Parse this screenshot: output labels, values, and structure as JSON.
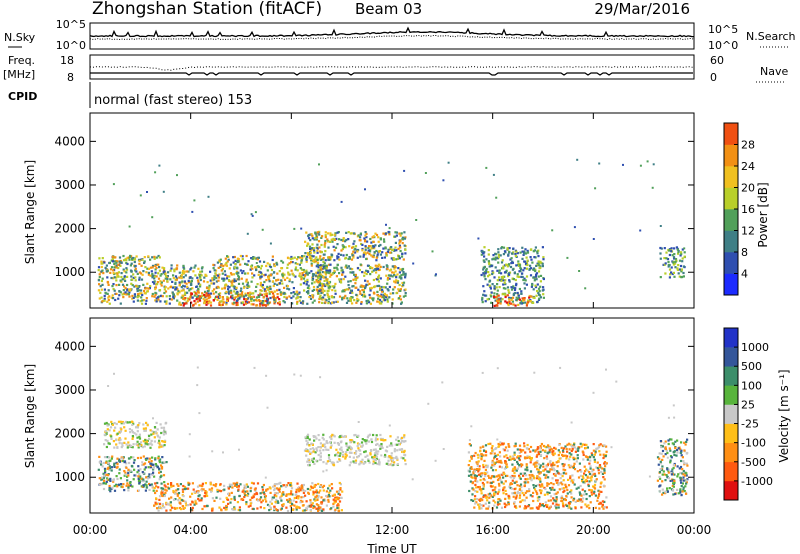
{
  "header": {
    "station": "Zhongshan Station (fitACF)",
    "beam": "Beam 03",
    "date": "29/Mar/2016"
  },
  "noise_panel": {
    "left_label": "N.Sky",
    "left_ticks": [
      "10^5",
      "10^0"
    ],
    "right_ticks": [
      "10^5",
      "10^0"
    ],
    "right_label": "N.Search"
  },
  "freq_panel": {
    "left_label_1": "Freq.",
    "left_label_2": "[MHz]",
    "left_ticks": [
      "18",
      "8"
    ],
    "right_ticks": [
      "60",
      "0"
    ],
    "right_label": "Nave"
  },
  "cpid_panel": {
    "label": "CPID",
    "text": "normal (fast stereo) 153"
  },
  "colors": {
    "power_scale": [
      "#1c2bff",
      "#2f4fb0",
      "#3f7f86",
      "#51a05a",
      "#b9cf2a",
      "#f0c020",
      "#f29014",
      "#f05012",
      "#e01010"
    ],
    "velocity_scale": [
      "#e01010",
      "#ff5a10",
      "#ff8f14",
      "#ffbf18",
      "#c8c8c8",
      "#58b43c",
      "#3c8e6a",
      "#34569a",
      "#2233c8"
    ]
  },
  "chart_data": [
    {
      "type": "heatmap",
      "title": "Power",
      "xlabel": "Time UT",
      "ylabel": "Slant Range [km]",
      "x_ticks": [
        "00:00",
        "04:00",
        "08:00",
        "12:00",
        "16:00",
        "20:00",
        "00:00"
      ],
      "y_ticks": [
        "1000",
        "2000",
        "3000",
        "4000"
      ],
      "xlim": [
        0,
        24
      ],
      "ylim": [
        180,
        4650
      ],
      "colorbar_label": "Power [dB]",
      "colorbar_ticks": [
        "4",
        "8",
        "12",
        "16",
        "20",
        "24",
        "28"
      ],
      "colorbar_range": [
        0,
        32
      ],
      "scatter_regions": [
        {
          "t": [
            0.3,
            2.8
          ],
          "r": [
            300,
            1400
          ],
          "level": "mid"
        },
        {
          "t": [
            2.8,
            5.0
          ],
          "r": [
            300,
            1200
          ],
          "level": "mid"
        },
        {
          "t": [
            3.5,
            7.5
          ],
          "r": [
            250,
            550
          ],
          "level": "high"
        },
        {
          "t": [
            5.0,
            9.5
          ],
          "r": [
            300,
            1400
          ],
          "level": "mid"
        },
        {
          "t": [
            8.5,
            12.5
          ],
          "r": [
            1300,
            1950
          ],
          "level": "mid"
        },
        {
          "t": [
            9.0,
            12.5
          ],
          "r": [
            300,
            1200
          ],
          "level": "mid"
        },
        {
          "t": [
            15.5,
            18.0
          ],
          "r": [
            300,
            1600
          ],
          "level": "low"
        },
        {
          "t": [
            16.0,
            17.5
          ],
          "r": [
            250,
            500
          ],
          "level": "high"
        },
        {
          "t": [
            22.6,
            23.6
          ],
          "r": [
            900,
            1600
          ],
          "level": "low"
        }
      ]
    },
    {
      "type": "heatmap",
      "title": "Velocity",
      "xlabel": "Time UT",
      "ylabel": "Slant Range [km]",
      "x_ticks": [
        "00:00",
        "04:00",
        "08:00",
        "12:00",
        "16:00",
        "20:00",
        "00:00"
      ],
      "y_ticks": [
        "1000",
        "2000",
        "3000",
        "4000"
      ],
      "xlim": [
        0,
        24
      ],
      "ylim": [
        180,
        4650
      ],
      "colorbar_label": "Velocity [m s⁻¹]",
      "colorbar_ticks": [
        "-1000",
        "-500",
        "-100",
        "-25",
        "25",
        "100",
        "500",
        "1000"
      ],
      "scatter_regions": [
        {
          "t": [
            0.3,
            3.0
          ],
          "r": [
            700,
            1500
          ],
          "level": "positive"
        },
        {
          "t": [
            0.5,
            3.0
          ],
          "r": [
            1700,
            2300
          ],
          "level": "ground"
        },
        {
          "t": [
            2.5,
            10.0
          ],
          "r": [
            250,
            900
          ],
          "level": "negative"
        },
        {
          "t": [
            8.5,
            12.5
          ],
          "r": [
            1300,
            2000
          ],
          "level": "ground"
        },
        {
          "t": [
            15.0,
            20.5
          ],
          "r": [
            300,
            1800
          ],
          "level": "negative"
        },
        {
          "t": [
            22.5,
            23.7
          ],
          "r": [
            600,
            1900
          ],
          "level": "positive"
        }
      ]
    }
  ]
}
